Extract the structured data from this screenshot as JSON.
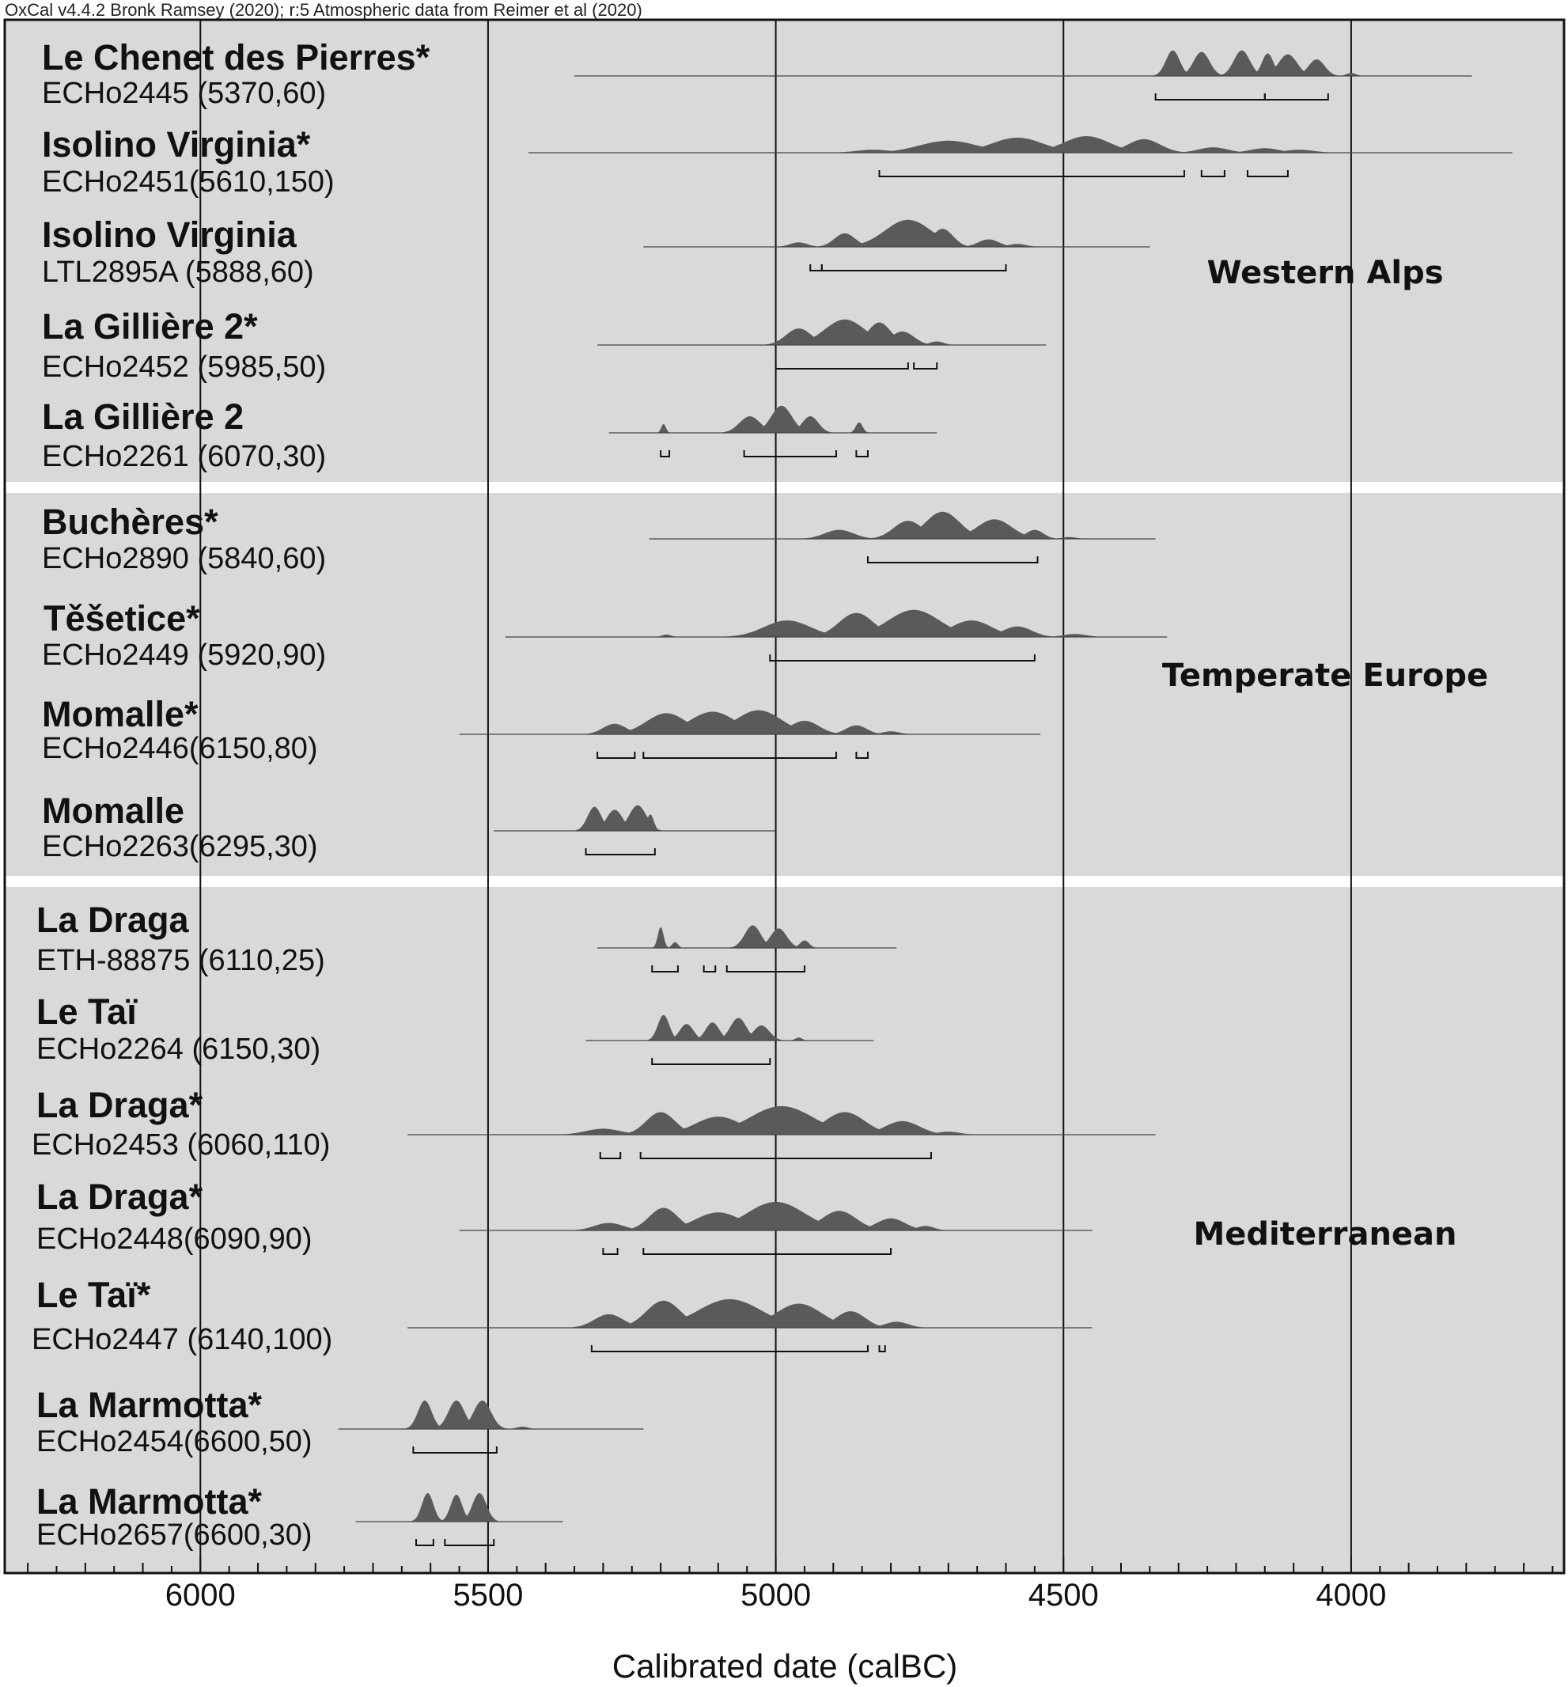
{
  "header": "OxCal v4.4.2 Bronk Ramsey (2020); r:5 Atmospheric data from Reimer et al (2020)",
  "colors": {
    "panel": "#d9d9d9",
    "distribution": "#5a5a5a",
    "separator": "#ffffff",
    "line": "#111111"
  },
  "chart_data": {
    "type": "density-ridge",
    "xlabel": "Calibrated date (calBC)",
    "x_range": [
      6340,
      3630
    ],
    "x_reversed": true,
    "ticks": [
      6000,
      5500,
      5000,
      4500,
      4000
    ],
    "minor_tick_step": 50,
    "gridlines": [
      6000,
      5500,
      5000,
      4500,
      4000
    ],
    "groups": [
      {
        "label": "Western Alps",
        "row_start": 0,
        "row_end": 4
      },
      {
        "label": "Temperate Europe",
        "row_start": 5,
        "row_end": 8
      },
      {
        "label": "Mediterranean",
        "row_start": 9,
        "row_end": 15
      }
    ],
    "series": [
      {
        "name": "Le Chenet des Pierres*",
        "lab": "ECHo2445 (5370,60)",
        "range": [
          5350,
          3790
        ],
        "peaks": [
          [
            4310,
            12,
            0.85
          ],
          [
            4260,
            14,
            0.8
          ],
          [
            4190,
            14,
            0.85
          ],
          [
            4145,
            10,
            0.75
          ],
          [
            4110,
            16,
            0.72
          ],
          [
            4060,
            14,
            0.55
          ],
          [
            4000,
            8,
            0.1
          ]
        ],
        "hpd": [
          [
            4340,
            4150
          ],
          [
            4150,
            4040
          ]
        ]
      },
      {
        "name": "Isolino Virginia*",
        "lab": "ECHo2451(5610,150)",
        "range": [
          5430,
          3720
        ],
        "peaks": [
          [
            4830,
            30,
            0.1
          ],
          [
            4700,
            50,
            0.4
          ],
          [
            4580,
            45,
            0.5
          ],
          [
            4460,
            40,
            0.55
          ],
          [
            4360,
            28,
            0.45
          ],
          [
            4240,
            25,
            0.18
          ],
          [
            4150,
            25,
            0.15
          ],
          [
            4090,
            25,
            0.1
          ]
        ],
        "hpd": [
          [
            4820,
            4290
          ],
          [
            4260,
            4220
          ],
          [
            4180,
            4110
          ]
        ]
      },
      {
        "name": "Isolino Virginia",
        "lab": "LTL2895A (5888,60)",
        "range": [
          5230,
          4350
        ],
        "peaks": [
          [
            4960,
            15,
            0.15
          ],
          [
            4880,
            18,
            0.45
          ],
          [
            4770,
            40,
            0.9
          ],
          [
            4710,
            18,
            0.6
          ],
          [
            4630,
            18,
            0.25
          ],
          [
            4580,
            15,
            0.1
          ]
        ],
        "hpd": [
          [
            4940,
            4920
          ],
          [
            4920,
            4600
          ]
        ]
      },
      {
        "name": "La Gillière 2*",
        "lab": "ECHo2452 (5985,50)",
        "range": [
          5310,
          4530
        ],
        "peaks": [
          [
            4960,
            22,
            0.55
          ],
          [
            4880,
            35,
            0.85
          ],
          [
            4820,
            20,
            0.75
          ],
          [
            4780,
            20,
            0.45
          ],
          [
            4720,
            12,
            0.12
          ]
        ],
        "hpd": [
          [
            5000,
            4770
          ],
          [
            4760,
            4720
          ]
        ]
      },
      {
        "name": "La Gillière 2",
        "lab": "ECHo2261 (6070,30)",
        "range": [
          5290,
          4720
        ],
        "peaks": [
          [
            5195,
            4,
            0.3
          ],
          [
            5045,
            18,
            0.55
          ],
          [
            4990,
            18,
            0.9
          ],
          [
            4940,
            14,
            0.55
          ],
          [
            4855,
            6,
            0.35
          ]
        ],
        "hpd": [
          [
            5200,
            5185
          ],
          [
            5055,
            4895
          ],
          [
            4860,
            4840
          ]
        ]
      },
      {
        "name": "Buchères*",
        "lab": "ECHo2890 (5840,60)",
        "range": [
          5220,
          4340
        ],
        "peaks": [
          [
            4890,
            25,
            0.3
          ],
          [
            4770,
            25,
            0.6
          ],
          [
            4710,
            30,
            0.9
          ],
          [
            4620,
            30,
            0.65
          ],
          [
            4550,
            15,
            0.3
          ],
          [
            4490,
            12,
            0.06
          ]
        ],
        "hpd": [
          [
            4840,
            4545
          ]
        ]
      },
      {
        "name": "Těšetice*",
        "lab": "ECHo2449 (5920,90)",
        "range": [
          5470,
          4320
        ],
        "peaks": [
          [
            5190,
            8,
            0.08
          ],
          [
            4980,
            40,
            0.55
          ],
          [
            4860,
            30,
            0.8
          ],
          [
            4760,
            45,
            0.9
          ],
          [
            4660,
            35,
            0.55
          ],
          [
            4580,
            25,
            0.35
          ],
          [
            4480,
            20,
            0.1
          ]
        ],
        "hpd": [
          [
            5010,
            4550
          ]
        ]
      },
      {
        "name": "Momalle*",
        "lab": "ECHo2446(6150,80)",
        "range": [
          5550,
          4540
        ],
        "peaks": [
          [
            5280,
            20,
            0.35
          ],
          [
            5190,
            35,
            0.7
          ],
          [
            5110,
            40,
            0.75
          ],
          [
            5030,
            40,
            0.8
          ],
          [
            4950,
            25,
            0.45
          ],
          [
            4860,
            18,
            0.3
          ],
          [
            4800,
            15,
            0.1
          ]
        ],
        "hpd": [
          [
            5310,
            5245
          ],
          [
            5230,
            4895
          ],
          [
            4860,
            4840
          ]
        ]
      },
      {
        "name": "Momalle",
        "lab": "ECHo2263(6295,30)",
        "range": [
          5490,
          5000
        ],
        "peaks": [
          [
            5315,
            12,
            0.8
          ],
          [
            5280,
            14,
            0.7
          ],
          [
            5240,
            15,
            0.85
          ],
          [
            5218,
            6,
            0.55
          ]
        ],
        "hpd": [
          [
            5330,
            5210
          ]
        ]
      },
      {
        "name": "La Draga",
        "lab": "ETH-88875 (6110,25)",
        "range": [
          5310,
          4790
        ],
        "peaks": [
          [
            5200,
            5,
            0.7
          ],
          [
            5175,
            5,
            0.2
          ],
          [
            5040,
            14,
            0.75
          ],
          [
            4995,
            14,
            0.65
          ],
          [
            4950,
            8,
            0.25
          ]
        ],
        "hpd": [
          [
            5215,
            5170
          ],
          [
            5125,
            5105
          ],
          [
            5085,
            4950
          ]
        ]
      },
      {
        "name": "Le Taï",
        "lab": "ECHo2264 (6150,30)",
        "range": [
          5330,
          4830
        ],
        "peaks": [
          [
            5195,
            10,
            0.85
          ],
          [
            5155,
            12,
            0.55
          ],
          [
            5110,
            12,
            0.6
          ],
          [
            5065,
            14,
            0.75
          ],
          [
            5025,
            14,
            0.5
          ],
          [
            4960,
            6,
            0.1
          ]
        ],
        "hpd": [
          [
            5215,
            5010
          ]
        ]
      },
      {
        "name": "La Draga*",
        "lab": "ECHo2453 (6060,110)",
        "range": [
          5640,
          4340
        ],
        "peaks": [
          [
            5300,
            30,
            0.2
          ],
          [
            5200,
            25,
            0.75
          ],
          [
            5100,
            40,
            0.6
          ],
          [
            4990,
            55,
            0.95
          ],
          [
            4880,
            35,
            0.75
          ],
          [
            4780,
            30,
            0.45
          ],
          [
            4700,
            20,
            0.1
          ]
        ],
        "hpd": [
          [
            5305,
            5270
          ],
          [
            5235,
            4730
          ]
        ]
      },
      {
        "name": "La Draga*",
        "lab": "ECHo2448(6090,90)",
        "range": [
          5550,
          4450
        ],
        "peaks": [
          [
            5290,
            25,
            0.25
          ],
          [
            5195,
            25,
            0.75
          ],
          [
            5100,
            40,
            0.6
          ],
          [
            5000,
            50,
            0.95
          ],
          [
            4890,
            30,
            0.65
          ],
          [
            4800,
            25,
            0.4
          ],
          [
            4740,
            15,
            0.15
          ]
        ],
        "hpd": [
          [
            5300,
            5275
          ],
          [
            5230,
            4800
          ]
        ]
      },
      {
        "name": "Le Taï*",
        "lab": "ECHo2447 (6140,100)",
        "range": [
          5640,
          4450
        ],
        "peaks": [
          [
            5290,
            25,
            0.45
          ],
          [
            5195,
            30,
            0.9
          ],
          [
            5080,
            55,
            0.95
          ],
          [
            4960,
            40,
            0.8
          ],
          [
            4870,
            25,
            0.55
          ],
          [
            4790,
            20,
            0.2
          ]
        ],
        "hpd": [
          [
            5320,
            4840
          ],
          [
            4820,
            4810
          ]
        ]
      },
      {
        "name": "La Marmotta*",
        "lab": "ECHo2454(6600,50)",
        "range": [
          5760,
          5230
        ],
        "peaks": [
          [
            5610,
            12,
            0.95
          ],
          [
            5555,
            14,
            0.95
          ],
          [
            5510,
            15,
            0.95
          ],
          [
            5440,
            10,
            0.08
          ]
        ],
        "hpd": [
          [
            5630,
            5485
          ]
        ]
      },
      {
        "name": "La Marmotta*",
        "lab": "ECHo2657(6600,30)",
        "range": [
          5730,
          5370
        ],
        "peaks": [
          [
            5605,
            10,
            0.95
          ],
          [
            5555,
            10,
            0.9
          ],
          [
            5515,
            12,
            0.95
          ]
        ],
        "hpd": [
          [
            5625,
            5595
          ],
          [
            5575,
            5490
          ]
        ]
      }
    ]
  }
}
